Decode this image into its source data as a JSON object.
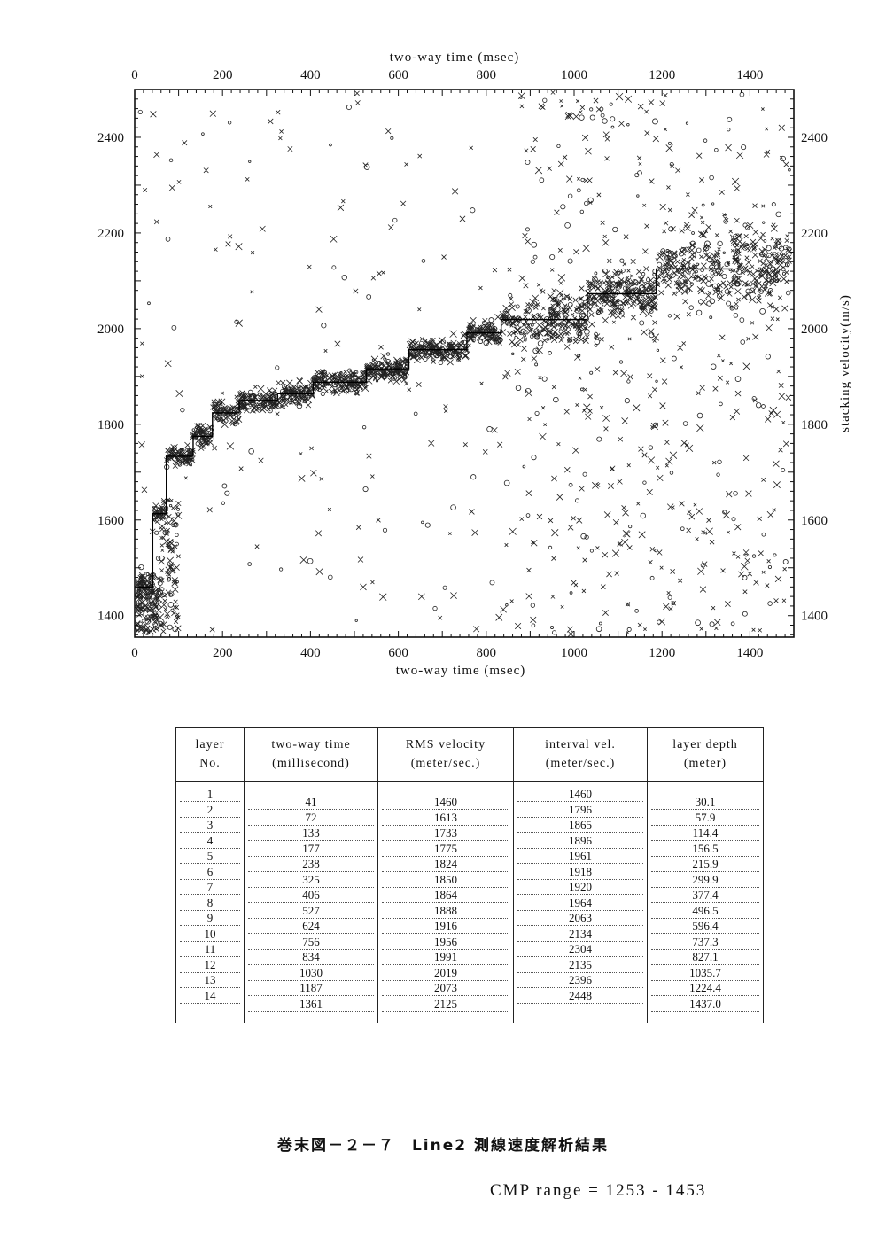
{
  "chart_data": {
    "type": "scatter",
    "xlabel": "two-way time (msec)",
    "ylabel": "stacking velocity(m/s)",
    "xlim": [
      0,
      1500
    ],
    "ylim": [
      1355,
      2500
    ],
    "xticks": [
      0,
      200,
      400,
      600,
      800,
      1000,
      1200,
      1400
    ],
    "yticks": [
      1400,
      1600,
      1800,
      2000,
      2200,
      2400
    ],
    "picked_velocity_profile": [
      {
        "time": 0,
        "velocity": 1460
      },
      {
        "time": 41,
        "velocity": 1460
      },
      {
        "time": 72,
        "velocity": 1613
      },
      {
        "time": 133,
        "velocity": 1733
      },
      {
        "time": 177,
        "velocity": 1775
      },
      {
        "time": 238,
        "velocity": 1824
      },
      {
        "time": 325,
        "velocity": 1850
      },
      {
        "time": 406,
        "velocity": 1864
      },
      {
        "time": 527,
        "velocity": 1888
      },
      {
        "time": 624,
        "velocity": 1916
      },
      {
        "time": 756,
        "velocity": 1956
      },
      {
        "time": 834,
        "velocity": 1991
      },
      {
        "time": 1030,
        "velocity": 2019
      },
      {
        "time": 1187,
        "velocity": 2073
      },
      {
        "time": 1361,
        "velocity": 2125
      }
    ]
  },
  "table": {
    "headers": [
      {
        "line1": "layer",
        "line2": "No."
      },
      {
        "line1": "two-way time",
        "line2": "(millisecond)"
      },
      {
        "line1": "RMS velocity",
        "line2": "(meter/sec.)"
      },
      {
        "line1": "interval vel.",
        "line2": "(meter/sec.)"
      },
      {
        "line1": "layer depth",
        "line2": "(meter)"
      }
    ],
    "layer_no": [
      "1",
      "2",
      "3",
      "4",
      "5",
      "6",
      "7",
      "8",
      "9",
      "10",
      "11",
      "12",
      "13",
      "14"
    ],
    "two_way_time": [
      "41",
      "72",
      "133",
      "177",
      "238",
      "325",
      "406",
      "527",
      "624",
      "756",
      "834",
      "1030",
      "1187",
      "1361"
    ],
    "rms_velocity": [
      "1460",
      "1613",
      "1733",
      "1775",
      "1824",
      "1850",
      "1864",
      "1888",
      "1916",
      "1956",
      "1991",
      "2019",
      "2073",
      "2125"
    ],
    "interval_vel": [
      "1460",
      "1796",
      "1865",
      "1896",
      "1961",
      "1918",
      "1920",
      "1964",
      "2063",
      "2134",
      "2304",
      "2135",
      "2396",
      "2448"
    ],
    "layer_depth": [
      "30.1",
      "57.9",
      "114.4",
      "156.5",
      "215.9",
      "299.9",
      "377.4",
      "496.5",
      "596.4",
      "737.3",
      "827.1",
      "1035.7",
      "1224.4",
      "1437.0"
    ]
  },
  "caption": "巻末図－２－７　Line2 測線速度解析結果",
  "cmp_range": "CMP range = 1253 - 1453"
}
